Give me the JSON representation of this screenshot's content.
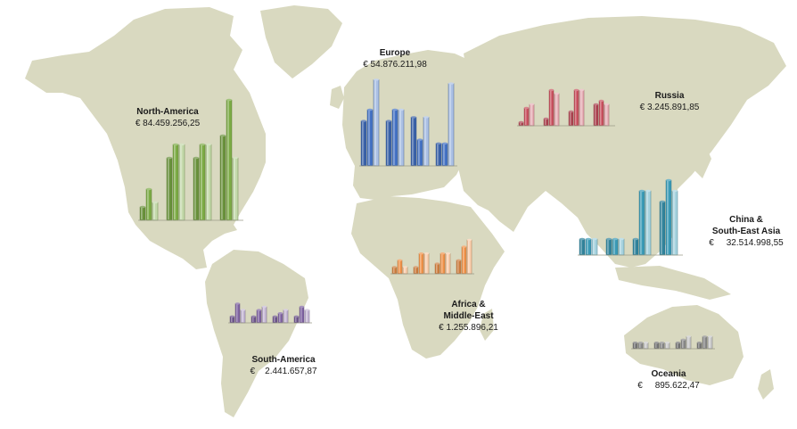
{
  "map": {
    "land_color": "#d9d9c0",
    "background": "#ffffff"
  },
  "chart_data": [
    {
      "type": "bar",
      "region": "North-America",
      "label_lines": [
        "North-America"
      ],
      "amount": "€ 84.459.256,25",
      "color": "#7cab45",
      "groups": [
        [
          3,
          7,
          4
        ],
        [
          14,
          17,
          17
        ],
        [
          14,
          17,
          17
        ],
        [
          19,
          27,
          14
        ]
      ]
    },
    {
      "type": "bar",
      "region": "Europe",
      "label_lines": [
        "Europe"
      ],
      "amount": "€ 54.876.211,98",
      "color": "#4472c4",
      "groups": [
        [
          12,
          15,
          23
        ],
        [
          12,
          15,
          15
        ],
        [
          13,
          7,
          13
        ],
        [
          6,
          6,
          22
        ]
      ]
    },
    {
      "type": "bar",
      "region": "Russia",
      "label_lines": [
        "Russia"
      ],
      "amount": "€ 3.245.891,85",
      "color": "#c9505e",
      "groups": [
        [
          1,
          5,
          6
        ],
        [
          2,
          10,
          9
        ],
        [
          4,
          10,
          10
        ],
        [
          6,
          7,
          6
        ]
      ]
    },
    {
      "type": "bar",
      "region": "China & South-East Asia",
      "label_lines": [
        "China &",
        "South-East Asia"
      ],
      "amount": "€     32.514.998,55",
      "color": "#3a9ab6",
      "groups": [
        [
          3,
          3,
          3
        ],
        [
          3,
          3,
          3
        ],
        [
          3,
          12,
          12
        ],
        [
          10,
          14,
          12
        ]
      ]
    },
    {
      "type": "bar",
      "region": "Africa & Middle-East",
      "label_lines": [
        "Africa &",
        "Middle-East"
      ],
      "amount": "€ 1.255.896,21",
      "color": "#f0934a",
      "groups": [
        [
          2,
          4,
          2
        ],
        [
          2,
          6,
          6
        ],
        [
          3,
          6,
          6
        ],
        [
          4,
          8,
          10
        ]
      ]
    },
    {
      "type": "bar",
      "region": "South-America",
      "label_lines": [
        "South-America"
      ],
      "amount": "€    2.441.657,87",
      "color": "#8064a2",
      "groups": [
        [
          2,
          6,
          4
        ],
        [
          2,
          4,
          5
        ],
        [
          2,
          3,
          4
        ],
        [
          2,
          5,
          4
        ]
      ]
    },
    {
      "type": "bar",
      "region": "Oceania",
      "label_lines": [
        "Oceania"
      ],
      "amount": "€     895.622,47",
      "color": "#8a8a8a",
      "groups": [
        [
          2,
          2,
          2
        ],
        [
          2,
          2,
          2
        ],
        [
          2,
          3,
          4
        ],
        [
          2,
          4,
          4
        ]
      ]
    }
  ]
}
